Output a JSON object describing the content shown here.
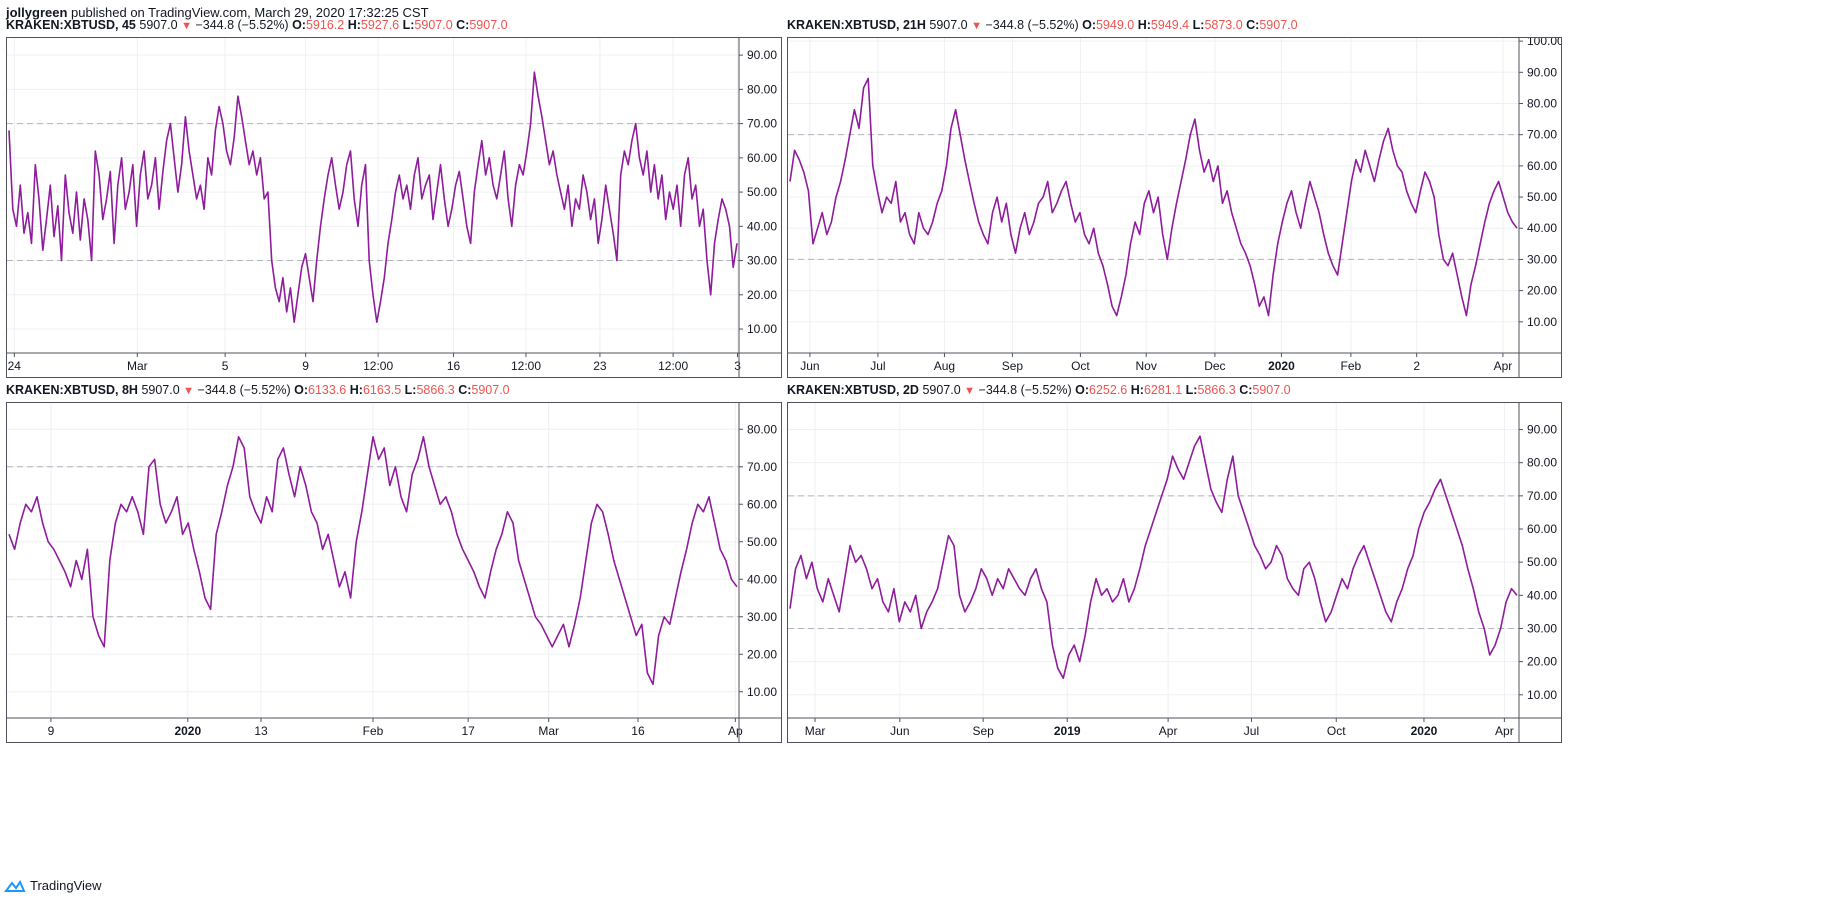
{
  "header": {
    "author": "jollygreen",
    "published": "published on TradingView.com, March 29, 2020 17:32:25 CST"
  },
  "footer": {
    "brand": "TradingView"
  },
  "colors": {
    "line": "#8e1c9c",
    "grid": "#eef0f3",
    "band": "#b2b5be",
    "red": "#ef5350"
  },
  "panels": [
    {
      "symbol": "KRAKEN:XBTUSD, 45",
      "price": "5907.0",
      "change": "−344.8 (−5.52%)",
      "open": "5916.2",
      "high": "5927.6",
      "low": "5907.0",
      "close": "5907.0",
      "chart_data": {
        "type": "line",
        "ylim": [
          3,
          95
        ],
        "y_ticks": [
          "90.00",
          "80.00",
          "70.00",
          "60.00",
          "50.00",
          "40.00",
          "30.00",
          "20.00",
          "10.00"
        ],
        "bands": [
          30,
          70
        ],
        "x_ticks": [
          {
            "label": "24",
            "pos": 0.01
          },
          {
            "label": "Mar",
            "pos": 0.178
          },
          {
            "label": "5",
            "pos": 0.298
          },
          {
            "label": "9",
            "pos": 0.408
          },
          {
            "label": "12:00",
            "pos": 0.507
          },
          {
            "label": "16",
            "pos": 0.61
          },
          {
            "label": "12:00",
            "pos": 0.709
          },
          {
            "label": "23",
            "pos": 0.81
          },
          {
            "label": "12:00",
            "pos": 0.91
          },
          {
            "label": "3",
            "pos": 0.998
          }
        ],
        "bold_ticks": [],
        "values": [
          68,
          45,
          40,
          52,
          38,
          44,
          35,
          58,
          48,
          33,
          42,
          52,
          37,
          46,
          30,
          55,
          44,
          38,
          50,
          36,
          48,
          42,
          30,
          62,
          55,
          42,
          48,
          56,
          35,
          52,
          60,
          45,
          50,
          58,
          40,
          55,
          62,
          48,
          52,
          60,
          45,
          56,
          65,
          70,
          60,
          50,
          58,
          72,
          62,
          55,
          48,
          52,
          45,
          60,
          55,
          68,
          75,
          70,
          62,
          58,
          66,
          78,
          72,
          65,
          58,
          62,
          55,
          60,
          48,
          50,
          30,
          22,
          18,
          25,
          15,
          22,
          12,
          20,
          28,
          32,
          25,
          18,
          30,
          40,
          48,
          55,
          60,
          52,
          45,
          50,
          58,
          62,
          48,
          40,
          52,
          58,
          30,
          20,
          12,
          18,
          25,
          35,
          42,
          50,
          55,
          48,
          52,
          45,
          55,
          60,
          48,
          52,
          55,
          42,
          50,
          58,
          48,
          40,
          45,
          52,
          56,
          48,
          40,
          35,
          50,
          58,
          65,
          55,
          60,
          52,
          48,
          55,
          62,
          48,
          40,
          52,
          58,
          55,
          62,
          70,
          85,
          78,
          72,
          65,
          58,
          62,
          55,
          50,
          45,
          52,
          40,
          48,
          45,
          55,
          50,
          42,
          48,
          35,
          42,
          52,
          45,
          38,
          30,
          55,
          62,
          58,
          65,
          70,
          60,
          55,
          62,
          50,
          58,
          48,
          55,
          42,
          50,
          45,
          52,
          40,
          55,
          60,
          48,
          52,
          40,
          45,
          30,
          20,
          35,
          42,
          48,
          45,
          40,
          28,
          35
        ],
        "xlabel": "",
        "ylabel": ""
      }
    },
    {
      "symbol": "KRAKEN:XBTUSD, 21H",
      "price": "5907.0",
      "change": "−344.8 (−5.52%)",
      "open": "5949.0",
      "high": "5949.4",
      "low": "5873.0",
      "close": "5907.0",
      "chart_data": {
        "type": "line",
        "ylim": [
          0,
          101
        ],
        "y_ticks": [
          "100.00",
          "90.00",
          "80.00",
          "70.00",
          "60.00",
          "50.00",
          "40.00",
          "30.00",
          "20.00",
          "10.00"
        ],
        "bands": [
          30,
          70
        ],
        "x_ticks": [
          {
            "label": "Jun",
            "pos": 0.03
          },
          {
            "label": "Jul",
            "pos": 0.123
          },
          {
            "label": "Aug",
            "pos": 0.214
          },
          {
            "label": "Sep",
            "pos": 0.307
          },
          {
            "label": "Oct",
            "pos": 0.4
          },
          {
            "label": "Nov",
            "pos": 0.49
          },
          {
            "label": "Dec",
            "pos": 0.584
          },
          {
            "label": "2020",
            "pos": 0.675
          },
          {
            "label": "Feb",
            "pos": 0.77
          },
          {
            "label": "2",
            "pos": 0.86
          },
          {
            "label": "Apr",
            "pos": 0.978
          }
        ],
        "bold_ticks": [
          "2020"
        ],
        "values": [
          55,
          65,
          62,
          58,
          52,
          35,
          40,
          45,
          38,
          42,
          50,
          55,
          62,
          70,
          78,
          72,
          85,
          88,
          60,
          52,
          45,
          50,
          48,
          55,
          42,
          45,
          38,
          35,
          45,
          40,
          38,
          42,
          48,
          52,
          60,
          72,
          78,
          70,
          62,
          55,
          48,
          42,
          38,
          35,
          45,
          50,
          42,
          48,
          38,
          32,
          40,
          45,
          38,
          42,
          48,
          50,
          55,
          45,
          48,
          52,
          55,
          48,
          42,
          45,
          38,
          35,
          40,
          32,
          28,
          22,
          15,
          12,
          18,
          25,
          35,
          42,
          38,
          48,
          52,
          45,
          50,
          38,
          30,
          40,
          48,
          55,
          62,
          70,
          75,
          65,
          58,
          62,
          55,
          60,
          48,
          52,
          45,
          40,
          35,
          32,
          28,
          22,
          15,
          18,
          12,
          25,
          35,
          42,
          48,
          52,
          45,
          40,
          48,
          55,
          50,
          45,
          38,
          32,
          28,
          25,
          35,
          45,
          55,
          62,
          58,
          65,
          60,
          55,
          62,
          68,
          72,
          65,
          60,
          58,
          52,
          48,
          45,
          52,
          58,
          55,
          50,
          38,
          30,
          28,
          32,
          25,
          18,
          12,
          22,
          28,
          35,
          42,
          48,
          52,
          55,
          50,
          45,
          42,
          40
        ],
        "xlabel": "",
        "ylabel": ""
      }
    },
    {
      "symbol": "KRAKEN:XBTUSD, 8H",
      "price": "5907.0",
      "change": "−344.8 (−5.52%)",
      "open": "6133.6",
      "high": "6163.5",
      "low": "5866.3",
      "close": "5907.0",
      "chart_data": {
        "type": "line",
        "ylim": [
          3,
          87
        ],
        "y_ticks": [
          "80.00",
          "70.00",
          "60.00",
          "50.00",
          "40.00",
          "30.00",
          "20.00",
          "10.00"
        ],
        "bands": [
          30,
          70
        ],
        "x_ticks": [
          {
            "label": "9",
            "pos": 0.06
          },
          {
            "label": "2020",
            "pos": 0.247
          },
          {
            "label": "13",
            "pos": 0.347
          },
          {
            "label": "Feb",
            "pos": 0.5
          },
          {
            "label": "17",
            "pos": 0.63
          },
          {
            "label": "Mar",
            "pos": 0.74
          },
          {
            "label": "16",
            "pos": 0.862
          },
          {
            "label": "Ap",
            "pos": 0.995
          }
        ],
        "bold_ticks": [
          "2020"
        ],
        "values": [
          52,
          48,
          55,
          60,
          58,
          62,
          55,
          50,
          48,
          45,
          42,
          38,
          45,
          40,
          48,
          30,
          25,
          22,
          45,
          55,
          60,
          58,
          62,
          58,
          52,
          70,
          72,
          60,
          55,
          58,
          62,
          52,
          55,
          48,
          42,
          35,
          32,
          52,
          58,
          65,
          70,
          78,
          75,
          62,
          58,
          55,
          62,
          58,
          72,
          75,
          68,
          62,
          70,
          65,
          58,
          55,
          48,
          52,
          45,
          38,
          42,
          35,
          50,
          58,
          68,
          78,
          72,
          75,
          65,
          70,
          62,
          58,
          68,
          72,
          78,
          70,
          65,
          60,
          62,
          58,
          52,
          48,
          45,
          42,
          38,
          35,
          42,
          48,
          52,
          58,
          55,
          45,
          40,
          35,
          30,
          28,
          25,
          22,
          25,
          28,
          22,
          28,
          35,
          45,
          55,
          60,
          58,
          52,
          45,
          40,
          35,
          30,
          25,
          28,
          15,
          12,
          25,
          30,
          28,
          35,
          42,
          48,
          55,
          60,
          58,
          62,
          55,
          48,
          45,
          40,
          38
        ],
        "xlabel": "",
        "ylabel": ""
      }
    },
    {
      "symbol": "KRAKEN:XBTUSD, 2D",
      "price": "5907.0",
      "change": "−344.8 (−5.52%)",
      "open": "6252.6",
      "high": "6281.1",
      "low": "5866.3",
      "close": "5907.0",
      "chart_data": {
        "type": "line",
        "ylim": [
          3,
          98
        ],
        "y_ticks": [
          "90.00",
          "80.00",
          "70.00",
          "60.00",
          "50.00",
          "40.00",
          "30.00",
          "20.00",
          "10.00"
        ],
        "bands": [
          30,
          70
        ],
        "x_ticks": [
          {
            "label": "Mar",
            "pos": 0.037
          },
          {
            "label": "Jun",
            "pos": 0.153
          },
          {
            "label": "Sep",
            "pos": 0.267
          },
          {
            "label": "2019",
            "pos": 0.382
          },
          {
            "label": "Apr",
            "pos": 0.52
          },
          {
            "label": "Jul",
            "pos": 0.634
          },
          {
            "label": "Oct",
            "pos": 0.75
          },
          {
            "label": "2020",
            "pos": 0.87
          },
          {
            "label": "Apr",
            "pos": 0.98
          }
        ],
        "bold_ticks": [
          "2019",
          "2020"
        ],
        "values": [
          36,
          48,
          52,
          45,
          50,
          42,
          38,
          45,
          40,
          35,
          45,
          55,
          50,
          52,
          48,
          42,
          45,
          38,
          35,
          42,
          32,
          38,
          35,
          40,
          30,
          35,
          38,
          42,
          50,
          58,
          55,
          40,
          35,
          38,
          42,
          48,
          45,
          40,
          45,
          42,
          48,
          45,
          42,
          40,
          45,
          48,
          42,
          38,
          25,
          18,
          15,
          22,
          25,
          20,
          28,
          38,
          45,
          40,
          42,
          38,
          40,
          45,
          38,
          42,
          48,
          55,
          60,
          65,
          70,
          75,
          82,
          78,
          75,
          80,
          85,
          88,
          80,
          72,
          68,
          65,
          75,
          82,
          70,
          65,
          60,
          55,
          52,
          48,
          50,
          55,
          52,
          45,
          42,
          40,
          48,
          50,
          45,
          38,
          32,
          35,
          40,
          45,
          42,
          48,
          52,
          55,
          50,
          45,
          40,
          35,
          32,
          38,
          42,
          48,
          52,
          60,
          65,
          68,
          72,
          75,
          70,
          65,
          60,
          55,
          48,
          42,
          35,
          30,
          22,
          25,
          30,
          38,
          42,
          40
        ],
        "xlabel": "",
        "ylabel": ""
      }
    }
  ]
}
